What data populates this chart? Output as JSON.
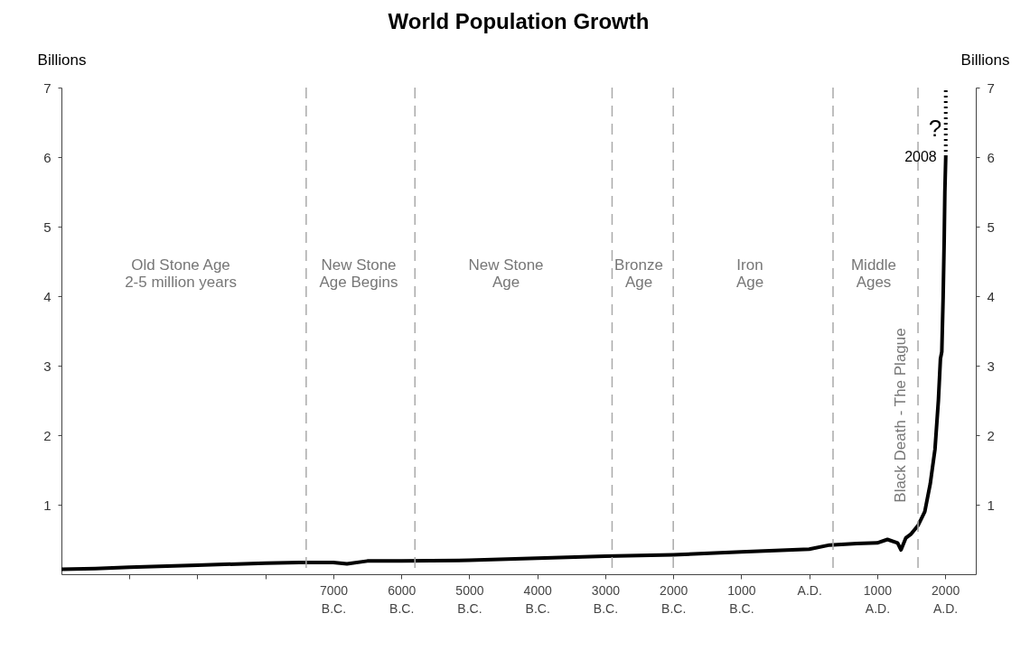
{
  "chart_data": {
    "type": "line",
    "title": "World Population Growth",
    "ylabel": "Billions",
    "y2label": "Billions",
    "xlim": [
      -11000,
      2450
    ],
    "xticks": [
      {
        "value": -10000,
        "label": null
      },
      {
        "value": -9000,
        "label": null
      },
      {
        "value": -8000,
        "label": null
      },
      {
        "value": -7000,
        "label": "7000\nB.C."
      },
      {
        "value": -6000,
        "label": "6000\nB.C."
      },
      {
        "value": -5000,
        "label": "5000\nB.C."
      },
      {
        "value": -4000,
        "label": "4000\nB.C."
      },
      {
        "value": -3000,
        "label": "3000\nB.C."
      },
      {
        "value": -2000,
        "label": "2000\nB.C."
      },
      {
        "value": -1000,
        "label": "1000\nB.C."
      },
      {
        "value": 0,
        "label": "A.D."
      },
      {
        "value": 1000,
        "label": "1000\nA.D."
      },
      {
        "value": 2000,
        "label": "2000\nA.D."
      }
    ],
    "ylim": [
      0,
      7
    ],
    "yticks": [
      1,
      2,
      3,
      4,
      5,
      6,
      7
    ],
    "y2lim": [
      0,
      7
    ],
    "y2ticks": [
      1,
      2,
      3,
      4,
      5,
      6,
      7
    ],
    "grid": false,
    "marker": "none",
    "series": [
      {
        "color": "#000000",
        "line_style": "solid",
        "x": [
          -11000,
          -10500,
          -10000,
          -9000,
          -8000,
          -7500,
          -7000,
          -6800,
          -6500,
          -6000,
          -5000,
          -4000,
          -3000,
          -2000,
          -1000,
          0,
          300,
          700,
          1000,
          1150,
          1300,
          1350,
          1420,
          1500,
          1600,
          1700,
          1780,
          1850,
          1900,
          1930,
          1950,
          1970,
          1985,
          1995,
          2008
        ],
        "values": [
          0.07,
          0.08,
          0.1,
          0.13,
          0.16,
          0.17,
          0.17,
          0.15,
          0.19,
          0.19,
          0.2,
          0.23,
          0.26,
          0.28,
          0.32,
          0.36,
          0.42,
          0.44,
          0.45,
          0.5,
          0.45,
          0.35,
          0.52,
          0.58,
          0.7,
          0.9,
          1.3,
          1.8,
          2.5,
          3.1,
          3.2,
          4.0,
          4.8,
          5.5,
          6.0
        ]
      },
      {
        "color": "#000000",
        "line_style": "dotted",
        "x": [
          2008,
          2008
        ],
        "values": [
          6.0,
          7.0
        ]
      }
    ],
    "ref_lines": [
      {
        "axis": "x",
        "value": -7400,
        "color": "#aaaaaa",
        "line_style": "dashed"
      },
      {
        "axis": "x",
        "value": -5800,
        "color": "#aaaaaa",
        "line_style": "dashed"
      },
      {
        "axis": "x",
        "value": -2900,
        "color": "#aaaaaa",
        "line_style": "dashed"
      },
      {
        "axis": "x",
        "value": -2000,
        "color": "#aaaaaa",
        "line_style": "dashed"
      },
      {
        "axis": "x",
        "value": 350,
        "color": "#aaaaaa",
        "line_style": "dashed"
      },
      {
        "axis": "x",
        "value": 1600,
        "color": "#aaaaaa",
        "line_style": "dashed"
      }
    ],
    "annotations": [
      "Old Stone Age\n2-5 million years",
      "New Stone\nAge Begins",
      "New Stone\nAge",
      "Bronze\nAge",
      "Iron\nAge",
      "Middle\nAges",
      "Black Death - The Plague",
      "?",
      {
        "text": "2008",
        "x": 2008,
        "y": 6.0
      }
    ]
  }
}
